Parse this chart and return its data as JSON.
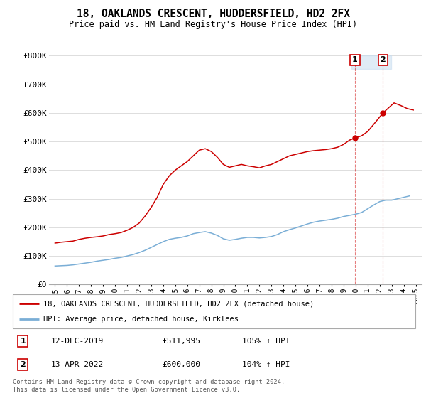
{
  "title": "18, OAKLANDS CRESCENT, HUDDERSFIELD, HD2 2FX",
  "subtitle": "Price paid vs. HM Land Registry's House Price Index (HPI)",
  "legend_line1": "18, OAKLANDS CRESCENT, HUDDERSFIELD, HD2 2FX (detached house)",
  "legend_line2": "HPI: Average price, detached house, Kirklees",
  "annotation1_date": "12-DEC-2019",
  "annotation1_price": "£511,995",
  "annotation1_hpi": "105% ↑ HPI",
  "annotation2_date": "13-APR-2022",
  "annotation2_price": "£600,000",
  "annotation2_hpi": "104% ↑ HPI",
  "footer": "Contains HM Land Registry data © Crown copyright and database right 2024.\nThis data is licensed under the Open Government Licence v3.0.",
  "red_color": "#cc0000",
  "blue_color": "#7aaed6",
  "annotation_box_color": "#cc0000",
  "grid_color": "#dddddd",
  "ylim": [
    0,
    800000
  ],
  "yticks": [
    0,
    100000,
    200000,
    300000,
    400000,
    500000,
    600000,
    700000,
    800000
  ],
  "ytick_labels": [
    "£0",
    "£100K",
    "£200K",
    "£300K",
    "£400K",
    "£500K",
    "£600K",
    "£700K",
    "£800K"
  ],
  "xlim_start": 1994.5,
  "xlim_end": 2025.5,
  "point1_x": 2019.95,
  "point1_y": 511995,
  "point2_x": 2022.28,
  "point2_y": 600000,
  "red_x": [
    1995.0,
    1995.5,
    1996.0,
    1996.5,
    1997.0,
    1997.5,
    1998.0,
    1998.5,
    1999.0,
    1999.5,
    2000.0,
    2000.5,
    2001.0,
    2001.5,
    2002.0,
    2002.5,
    2003.0,
    2003.5,
    2004.0,
    2004.5,
    2005.0,
    2005.5,
    2006.0,
    2006.5,
    2007.0,
    2007.5,
    2008.0,
    2008.5,
    2009.0,
    2009.5,
    2010.0,
    2010.5,
    2011.0,
    2011.5,
    2012.0,
    2012.5,
    2013.0,
    2013.5,
    2014.0,
    2014.5,
    2015.0,
    2015.5,
    2016.0,
    2016.5,
    2017.0,
    2017.5,
    2018.0,
    2018.5,
    2019.0,
    2019.5,
    2019.95,
    2020.5,
    2021.0,
    2021.5,
    2022.28,
    2022.8,
    2023.2,
    2023.8,
    2024.3,
    2024.8
  ],
  "red_y": [
    145000,
    148000,
    150000,
    152000,
    158000,
    162000,
    165000,
    167000,
    170000,
    175000,
    178000,
    182000,
    190000,
    200000,
    215000,
    240000,
    270000,
    305000,
    350000,
    380000,
    400000,
    415000,
    430000,
    450000,
    470000,
    475000,
    465000,
    445000,
    420000,
    410000,
    415000,
    420000,
    415000,
    412000,
    408000,
    415000,
    420000,
    430000,
    440000,
    450000,
    455000,
    460000,
    465000,
    468000,
    470000,
    472000,
    475000,
    480000,
    490000,
    505000,
    511995,
    520000,
    535000,
    560000,
    600000,
    620000,
    635000,
    625000,
    615000,
    610000
  ],
  "blue_x": [
    1995.0,
    1995.5,
    1996.0,
    1996.5,
    1997.0,
    1997.5,
    1998.0,
    1998.5,
    1999.0,
    1999.5,
    2000.0,
    2000.5,
    2001.0,
    2001.5,
    2002.0,
    2002.5,
    2003.0,
    2003.5,
    2004.0,
    2004.5,
    2005.0,
    2005.5,
    2006.0,
    2006.5,
    2007.0,
    2007.5,
    2008.0,
    2008.5,
    2009.0,
    2009.5,
    2010.0,
    2010.5,
    2011.0,
    2011.5,
    2012.0,
    2012.5,
    2013.0,
    2013.5,
    2014.0,
    2014.5,
    2015.0,
    2015.5,
    2016.0,
    2016.5,
    2017.0,
    2017.5,
    2018.0,
    2018.5,
    2019.0,
    2019.5,
    2020.0,
    2020.5,
    2021.0,
    2021.5,
    2022.0,
    2022.5,
    2023.0,
    2023.5,
    2024.0,
    2024.5
  ],
  "blue_y": [
    65000,
    66000,
    67000,
    69000,
    72000,
    75000,
    78000,
    82000,
    85000,
    88000,
    92000,
    95000,
    100000,
    105000,
    112000,
    120000,
    130000,
    140000,
    150000,
    158000,
    162000,
    165000,
    170000,
    178000,
    182000,
    185000,
    180000,
    172000,
    160000,
    155000,
    158000,
    162000,
    165000,
    165000,
    163000,
    165000,
    168000,
    175000,
    185000,
    192000,
    198000,
    205000,
    212000,
    218000,
    222000,
    225000,
    228000,
    232000,
    238000,
    242000,
    246000,
    252000,
    265000,
    278000,
    290000,
    295000,
    295000,
    300000,
    305000,
    310000
  ]
}
